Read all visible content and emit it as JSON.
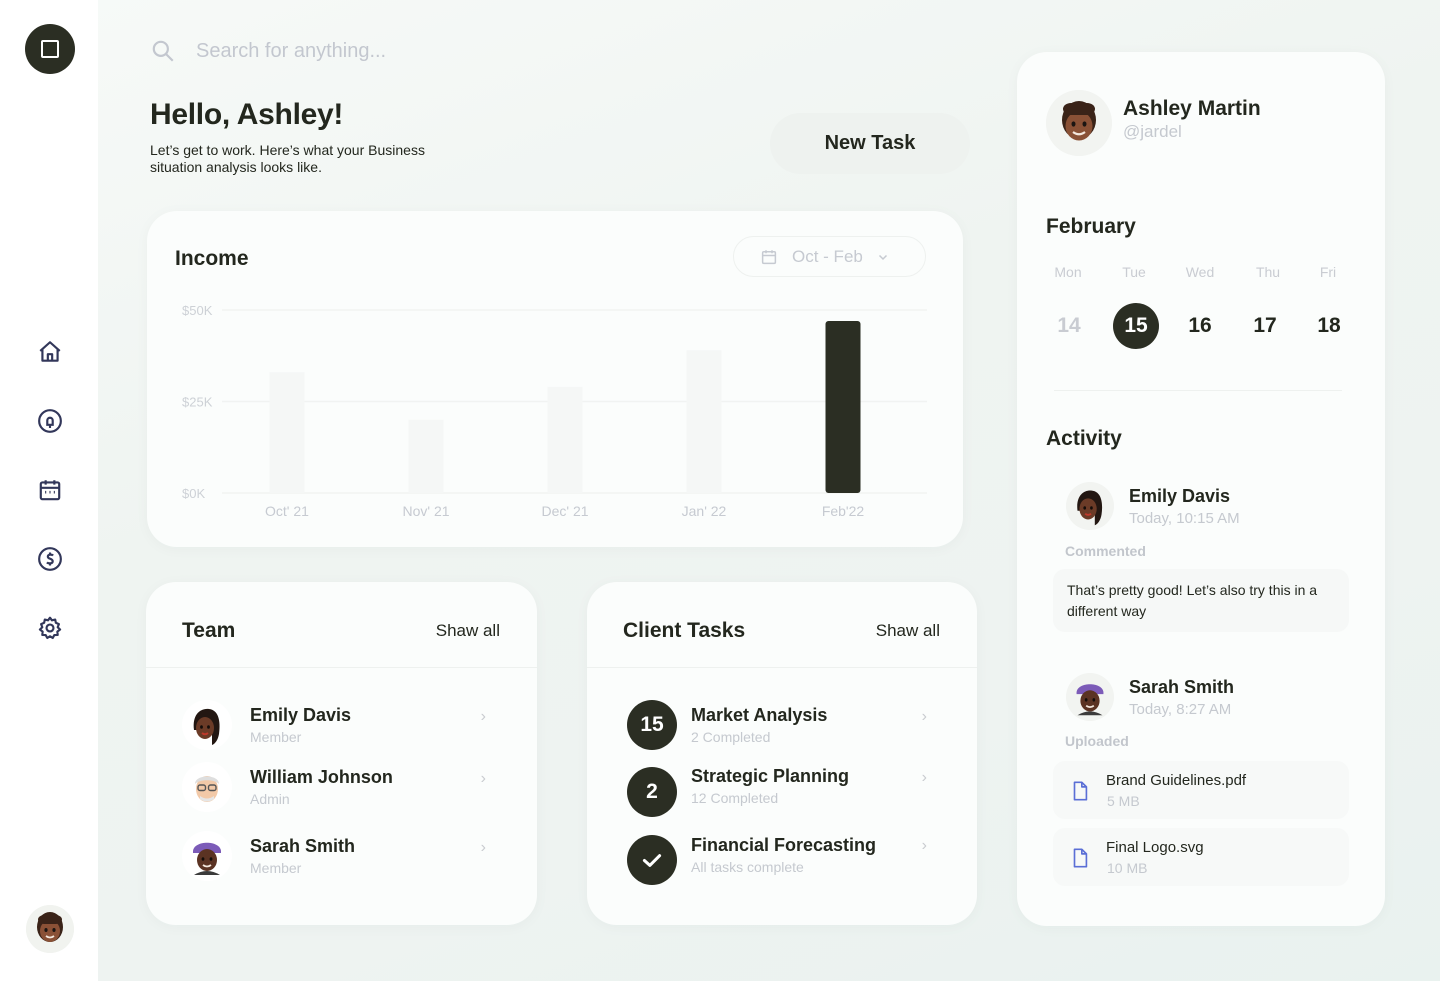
{
  "search": {
    "placeholder": "Search for anything..."
  },
  "greeting": {
    "title": "Hello, Ashley!",
    "subtitle": "Let’s get to work. Here’s what your Business situation analysis looks like."
  },
  "actions": {
    "new_task": "New Task"
  },
  "income": {
    "title": "Income",
    "range": "Oct - Feb"
  },
  "chart_data": {
    "type": "bar",
    "title": "Income",
    "categories": [
      "Oct' 21",
      "Nov' 21",
      "Dec' 21",
      "Jan' 22",
      "Feb'22"
    ],
    "values": [
      33,
      20,
      29,
      39,
      47
    ],
    "ylim": [
      0,
      50
    ],
    "yticks": [
      "$0K",
      "$25K",
      "$50K"
    ],
    "ytick_values": [
      0,
      25,
      50
    ],
    "highlight_index": 4,
    "colors": {
      "highlight": "#2b2e23",
      "muted": "#f5f7f6",
      "grid": "#f1f3f2"
    },
    "grid": true
  },
  "team": {
    "title": "Team",
    "show_all": "Shaw all",
    "members": [
      {
        "name": "Emily Davis",
        "role": "Member",
        "avatar": "emily-avatar"
      },
      {
        "name": "William Johnson",
        "role": "Admin",
        "avatar": "william-avatar"
      },
      {
        "name": "Sarah Smith",
        "role": "Member",
        "avatar": "sarah-avatar"
      }
    ]
  },
  "client_tasks": {
    "title": "Client Tasks",
    "show_all": "Shaw all",
    "items": [
      {
        "badge": "15",
        "name": "Market Analysis",
        "status": "2 Completed"
      },
      {
        "badge": "2",
        "name": "Strategic Planning",
        "status": "12 Completed"
      },
      {
        "badge": "check-icon",
        "name": "Financial Forecasting",
        "status": "All tasks complete"
      }
    ]
  },
  "profile": {
    "name": "Ashley Martin",
    "handle": "@jardel"
  },
  "calendar": {
    "month": "February",
    "weekdays": [
      "Mon",
      "Tue",
      "Wed",
      "Thu",
      "Fri"
    ],
    "days": [
      "14",
      "15",
      "16",
      "17",
      "18"
    ],
    "selected": "15"
  },
  "activity": {
    "title": "Activity",
    "entries": [
      {
        "name": "Emily Davis",
        "time": "Today, 10:15 AM",
        "kind": "Commented",
        "comment": "That’s pretty good! Let’s also try this in a different way"
      },
      {
        "name": "Sarah Smith",
        "time": "Today, 8:27 AM",
        "kind": "Uploaded"
      }
    ],
    "files": [
      {
        "name": "Brand Guidelines.pdf",
        "size": "5 MB"
      },
      {
        "name": "Final Logo.svg",
        "size": "10 MB"
      }
    ]
  },
  "nav": [
    "home-icon",
    "notification-icon",
    "calendar-icon",
    "dollar-icon",
    "settings-icon"
  ],
  "colors": {
    "primary": "#2b2e23",
    "muted_text": "#c5c9cf",
    "card": "#fbfdfc",
    "accent_file": "#5b6fd6"
  }
}
